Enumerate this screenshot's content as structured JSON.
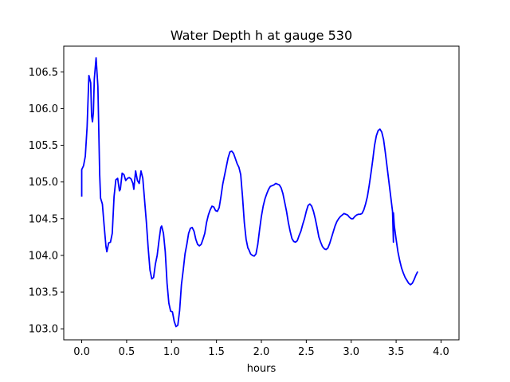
{
  "chart_data": {
    "type": "line",
    "title": "Water Depth h at gauge 530",
    "xlabel": "hours",
    "ylabel": "",
    "xlim": [
      -0.2,
      4.2
    ],
    "ylim": [
      102.85,
      106.85
    ],
    "xticks": [
      0.0,
      0.5,
      1.0,
      1.5,
      2.0,
      2.5,
      3.0,
      3.5,
      4.0
    ],
    "xtick_labels": [
      "0.0",
      "0.5",
      "1.0",
      "1.5",
      "2.0",
      "2.5",
      "3.0",
      "3.5",
      "4.0"
    ],
    "yticks": [
      103.0,
      103.5,
      104.0,
      104.5,
      105.0,
      105.5,
      106.0,
      106.5
    ],
    "ytick_labels": [
      "103.0",
      "103.5",
      "104.0",
      "104.5",
      "105.0",
      "105.5",
      "106.0",
      "106.5"
    ],
    "grid": false,
    "series": [
      {
        "color": "#0000ff",
        "points": [
          [
            0.0,
            104.8
          ],
          [
            0.0,
            105.17
          ],
          [
            0.02,
            105.22
          ],
          [
            0.04,
            105.35
          ],
          [
            0.06,
            105.75
          ],
          [
            0.08,
            106.45
          ],
          [
            0.1,
            106.35
          ],
          [
            0.11,
            105.9
          ],
          [
            0.12,
            105.82
          ],
          [
            0.13,
            105.95
          ],
          [
            0.14,
            106.4
          ],
          [
            0.16,
            106.69
          ],
          [
            0.18,
            106.3
          ],
          [
            0.2,
            105.1
          ],
          [
            0.21,
            104.78
          ],
          [
            0.23,
            104.7
          ],
          [
            0.25,
            104.4
          ],
          [
            0.27,
            104.12
          ],
          [
            0.28,
            104.05
          ],
          [
            0.3,
            104.17
          ],
          [
            0.32,
            104.18
          ],
          [
            0.34,
            104.3
          ],
          [
            0.36,
            104.8
          ],
          [
            0.38,
            105.03
          ],
          [
            0.4,
            105.05
          ],
          [
            0.42,
            104.88
          ],
          [
            0.43,
            104.9
          ],
          [
            0.45,
            105.12
          ],
          [
            0.47,
            105.1
          ],
          [
            0.49,
            105.02
          ],
          [
            0.51,
            105.05
          ],
          [
            0.53,
            105.06
          ],
          [
            0.55,
            105.04
          ],
          [
            0.57,
            104.98
          ],
          [
            0.58,
            104.9
          ],
          [
            0.6,
            105.15
          ],
          [
            0.62,
            105.02
          ],
          [
            0.64,
            104.98
          ],
          [
            0.66,
            105.15
          ],
          [
            0.68,
            105.05
          ],
          [
            0.7,
            104.75
          ],
          [
            0.72,
            104.45
          ],
          [
            0.74,
            104.1
          ],
          [
            0.76,
            103.8
          ],
          [
            0.78,
            103.68
          ],
          [
            0.8,
            103.7
          ],
          [
            0.82,
            103.88
          ],
          [
            0.84,
            104.0
          ],
          [
            0.86,
            104.2
          ],
          [
            0.88,
            104.38
          ],
          [
            0.89,
            104.4
          ],
          [
            0.91,
            104.3
          ],
          [
            0.93,
            104.05
          ],
          [
            0.95,
            103.62
          ],
          [
            0.97,
            103.35
          ],
          [
            0.99,
            103.24
          ],
          [
            1.01,
            103.23
          ],
          [
            1.03,
            103.1
          ],
          [
            1.05,
            103.03
          ],
          [
            1.07,
            103.05
          ],
          [
            1.09,
            103.25
          ],
          [
            1.11,
            103.6
          ],
          [
            1.13,
            103.8
          ],
          [
            1.15,
            104.02
          ],
          [
            1.17,
            104.15
          ],
          [
            1.19,
            104.3
          ],
          [
            1.21,
            104.37
          ],
          [
            1.23,
            104.38
          ],
          [
            1.25,
            104.33
          ],
          [
            1.27,
            104.22
          ],
          [
            1.29,
            104.15
          ],
          [
            1.31,
            104.13
          ],
          [
            1.33,
            104.15
          ],
          [
            1.35,
            104.22
          ],
          [
            1.37,
            104.3
          ],
          [
            1.39,
            104.45
          ],
          [
            1.41,
            104.55
          ],
          [
            1.43,
            104.62
          ],
          [
            1.45,
            104.67
          ],
          [
            1.47,
            104.66
          ],
          [
            1.49,
            104.61
          ],
          [
            1.51,
            104.6
          ],
          [
            1.53,
            104.65
          ],
          [
            1.55,
            104.8
          ],
          [
            1.57,
            104.97
          ],
          [
            1.6,
            105.15
          ],
          [
            1.63,
            105.33
          ],
          [
            1.65,
            105.41
          ],
          [
            1.67,
            105.42
          ],
          [
            1.69,
            105.39
          ],
          [
            1.71,
            105.32
          ],
          [
            1.73,
            105.25
          ],
          [
            1.75,
            105.2
          ],
          [
            1.77,
            105.1
          ],
          [
            1.79,
            104.8
          ],
          [
            1.81,
            104.45
          ],
          [
            1.83,
            104.22
          ],
          [
            1.85,
            104.1
          ],
          [
            1.86,
            104.08
          ],
          [
            1.88,
            104.02
          ],
          [
            1.9,
            104.0
          ],
          [
            1.92,
            103.99
          ],
          [
            1.94,
            104.02
          ],
          [
            1.96,
            104.15
          ],
          [
            1.98,
            104.35
          ],
          [
            2.0,
            104.53
          ],
          [
            2.02,
            104.67
          ],
          [
            2.04,
            104.77
          ],
          [
            2.06,
            104.84
          ],
          [
            2.08,
            104.9
          ],
          [
            2.1,
            104.94
          ],
          [
            2.12,
            104.95
          ],
          [
            2.14,
            104.96
          ],
          [
            2.16,
            104.98
          ],
          [
            2.18,
            104.97
          ],
          [
            2.2,
            104.96
          ],
          [
            2.22,
            104.92
          ],
          [
            2.24,
            104.84
          ],
          [
            2.26,
            104.72
          ],
          [
            2.28,
            104.6
          ],
          [
            2.3,
            104.45
          ],
          [
            2.32,
            104.33
          ],
          [
            2.34,
            104.23
          ],
          [
            2.36,
            104.19
          ],
          [
            2.38,
            104.18
          ],
          [
            2.4,
            104.2
          ],
          [
            2.42,
            104.27
          ],
          [
            2.44,
            104.33
          ],
          [
            2.46,
            104.42
          ],
          [
            2.48,
            104.5
          ],
          [
            2.5,
            104.6
          ],
          [
            2.52,
            104.68
          ],
          [
            2.54,
            104.7
          ],
          [
            2.56,
            104.67
          ],
          [
            2.58,
            104.6
          ],
          [
            2.6,
            104.5
          ],
          [
            2.62,
            104.38
          ],
          [
            2.64,
            104.25
          ],
          [
            2.66,
            104.18
          ],
          [
            2.68,
            104.12
          ],
          [
            2.7,
            104.09
          ],
          [
            2.72,
            104.08
          ],
          [
            2.74,
            104.1
          ],
          [
            2.76,
            104.16
          ],
          [
            2.78,
            104.24
          ],
          [
            2.8,
            104.32
          ],
          [
            2.82,
            104.4
          ],
          [
            2.84,
            104.46
          ],
          [
            2.86,
            104.5
          ],
          [
            2.88,
            104.53
          ],
          [
            2.9,
            104.55
          ],
          [
            2.92,
            104.57
          ],
          [
            2.94,
            104.56
          ],
          [
            2.96,
            104.55
          ],
          [
            2.98,
            104.52
          ],
          [
            3.0,
            104.5
          ],
          [
            3.02,
            104.5
          ],
          [
            3.04,
            104.53
          ],
          [
            3.06,
            104.55
          ],
          [
            3.08,
            104.56
          ],
          [
            3.1,
            104.56
          ],
          [
            3.12,
            104.57
          ],
          [
            3.14,
            104.62
          ],
          [
            3.16,
            104.7
          ],
          [
            3.18,
            104.8
          ],
          [
            3.2,
            104.95
          ],
          [
            3.22,
            105.12
          ],
          [
            3.24,
            105.3
          ],
          [
            3.26,
            105.5
          ],
          [
            3.28,
            105.63
          ],
          [
            3.3,
            105.7
          ],
          [
            3.32,
            105.72
          ],
          [
            3.34,
            105.68
          ],
          [
            3.36,
            105.58
          ],
          [
            3.38,
            105.4
          ],
          [
            3.4,
            105.2
          ],
          [
            3.42,
            105.0
          ],
          [
            3.44,
            104.8
          ],
          [
            3.46,
            104.6
          ],
          [
            3.47,
            104.18
          ],
          [
            3.47,
            104.58
          ],
          [
            3.48,
            104.4
          ],
          [
            3.5,
            104.22
          ],
          [
            3.52,
            104.05
          ],
          [
            3.54,
            103.93
          ],
          [
            3.56,
            103.83
          ],
          [
            3.58,
            103.76
          ],
          [
            3.6,
            103.7
          ],
          [
            3.62,
            103.66
          ],
          [
            3.64,
            103.62
          ],
          [
            3.66,
            103.6
          ],
          [
            3.68,
            103.62
          ],
          [
            3.7,
            103.67
          ],
          [
            3.72,
            103.73
          ],
          [
            3.74,
            103.78
          ]
        ]
      }
    ]
  }
}
